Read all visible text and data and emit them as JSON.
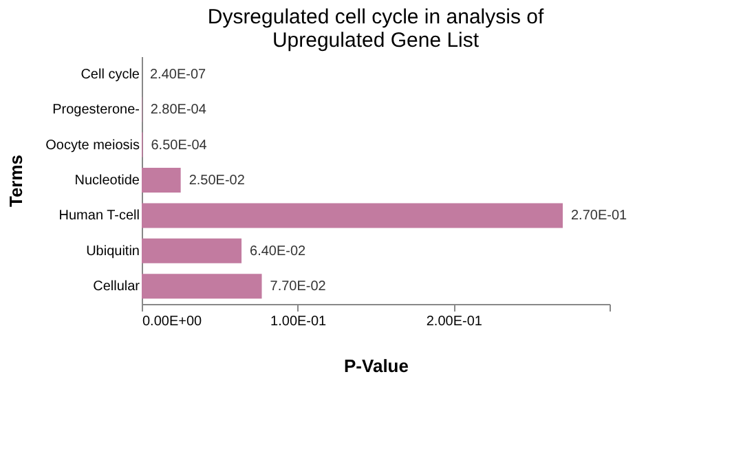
{
  "chart_data": {
    "type": "bar",
    "orientation": "horizontal",
    "title": [
      "Dysregulated cell cycle in analysis of",
      "Upregulated Gene List"
    ],
    "xlabel": "P-Value",
    "ylabel": "Terms",
    "categories": [
      "Cell cycle",
      "Progesterone-",
      "Oocyte meiosis",
      "Nucleotide",
      "Human T-cell",
      "Ubiquitin",
      "Cellular"
    ],
    "values": [
      2.4e-07,
      0.00028,
      0.00065,
      0.025,
      0.27,
      0.064,
      0.077
    ],
    "value_labels": [
      "2.40E-07",
      "2.80E-04",
      "6.50E-04",
      "2.50E-02",
      "2.70E-01",
      "6.40E-02",
      "7.70E-02"
    ],
    "color": "#c27ba0",
    "xlim": [
      0,
      0.3
    ],
    "xticks": [
      {
        "value": 0,
        "label": "0.00E+00"
      },
      {
        "value": 0.1,
        "label": "1.00E-01"
      },
      {
        "value": 0.2,
        "label": "2.00E-01"
      },
      {
        "value": 0.3,
        "label": null
      }
    ],
    "grid": false
  }
}
